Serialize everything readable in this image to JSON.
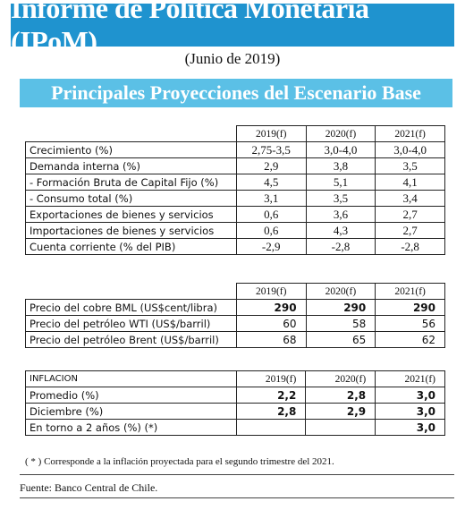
{
  "header": {
    "title": "Informe de Política Monetaria (IPoM)",
    "subtitle": "(Junio de 2019)",
    "section": "Principales Proyecciones del Escenario Base"
  },
  "table1": {
    "columns": [
      "2019(f)",
      "2020(f)",
      "2021(f)"
    ],
    "rows": [
      {
        "label": "Crecimiento (%)",
        "values": [
          "2,75-3,5",
          "3,0-4,0",
          "3,0-4,0"
        ]
      },
      {
        "label": "Demanda interna (%)",
        "values": [
          "2,9",
          "3,8",
          "3,5"
        ]
      },
      {
        "label": "- Formación Bruta de Capital Fijo (%)",
        "values": [
          "4,5",
          "5,1",
          "4,1"
        ]
      },
      {
        "label": "- Consumo total (%)",
        "values": [
          "3,1",
          "3,5",
          "3,4"
        ]
      },
      {
        "label": "Exportaciones de bienes y servicios",
        "values": [
          "0,6",
          "3,6",
          "2,7"
        ]
      },
      {
        "label": "Importaciones de bienes y servicios",
        "values": [
          "0,6",
          "4,3",
          "2,7"
        ]
      },
      {
        "label": "Cuenta corriente (% del PIB)",
        "values": [
          "-2,9",
          "-2,8",
          "-2,8"
        ]
      }
    ]
  },
  "table2": {
    "columns": [
      "2019(f)",
      "2020(f)",
      "2021(f)"
    ],
    "rows": [
      {
        "label": "Precio del cobre BML (US$cent/libra)",
        "values": [
          "290",
          "290",
          "290"
        ]
      },
      {
        "label": "Precio del petróleo WTI (US$/barril)",
        "values": [
          "60",
          "58",
          "56"
        ]
      },
      {
        "label": "Precio del petróleo Brent (US$/barril)",
        "values": [
          "68",
          "65",
          "62"
        ]
      }
    ]
  },
  "table3": {
    "header_label": "INFLACION",
    "columns": [
      "2019(f)",
      "2020(f)",
      "2021(f)"
    ],
    "rows": [
      {
        "label": "Promedio (%)",
        "values": [
          "2,2",
          "2,8",
          "3,0"
        ]
      },
      {
        "label": "Diciembre (%)",
        "values": [
          "2,8",
          "2,9",
          "3,0"
        ]
      },
      {
        "label": "En torno a 2 años (%) (*)",
        "values": [
          "",
          "",
          "3,0"
        ]
      }
    ]
  },
  "footnote": "( * ) Corresponde a la inflación proyectada para el  segundo trimestre del 2021.",
  "source": "Fuente: Banco Central de Chile.",
  "colors": {
    "title_bg": "#1f93cf",
    "section_bg": "#5bc0e6"
  }
}
